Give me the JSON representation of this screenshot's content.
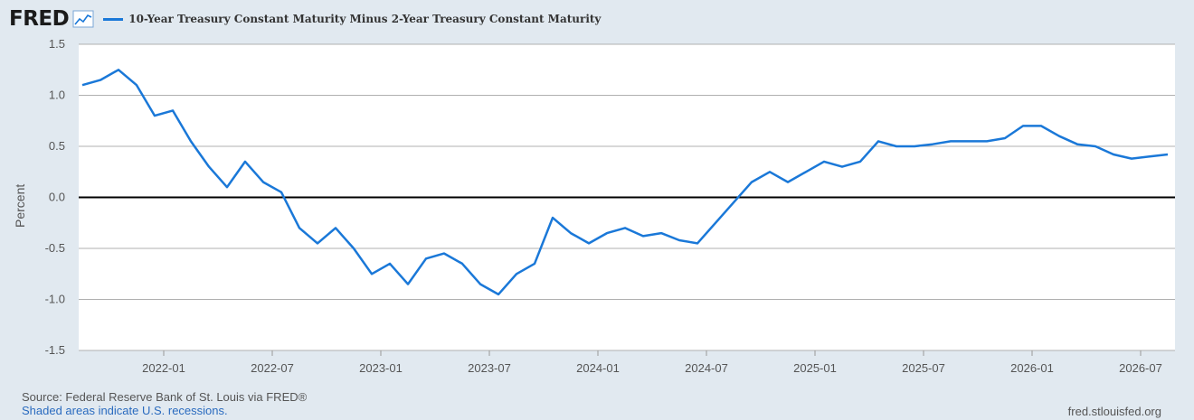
{
  "header": {
    "logo": "FRED",
    "logo_icon": "chart-line-icon",
    "series_label": "10-Year Treasury Constant Maturity Minus 2-Year Treasury Constant Maturity"
  },
  "colors": {
    "background": "#e1e9f0",
    "plot_background": "#ffffff",
    "series": "#1a78d8",
    "zero_line": "#000000",
    "grid": "#b0b0b0"
  },
  "footer": {
    "source": "Source: Federal Reserve Bank of St. Louis via FRED®",
    "shaded": "Shaded areas indicate U.S. recessions.",
    "url": "fred.stlouisfed.org"
  },
  "chart_data": {
    "type": "line",
    "title": "",
    "xlabel": "",
    "ylabel": "Percent",
    "ylim": [
      -1.5,
      1.5
    ],
    "yticks": [
      "1.5",
      "1.0",
      "0.5",
      "0.0",
      "-0.5",
      "-1.0",
      "-1.5"
    ],
    "xticks": [
      "2022-01",
      "2022-07",
      "2023-01",
      "2023-07",
      "2024-01",
      "2024-07",
      "2025-01",
      "2025-07",
      "2026-01",
      "2026-07"
    ],
    "grid": true,
    "legend": "top-left",
    "series": [
      {
        "name": "10-Year Treasury Constant Maturity Minus 2-Year Treasury Constant Maturity",
        "x": [
          "2021-08",
          "2021-09",
          "2021-10",
          "2021-11",
          "2021-12",
          "2022-01",
          "2022-02",
          "2022-03",
          "2022-04",
          "2022-05",
          "2022-06",
          "2022-07",
          "2022-08",
          "2022-09",
          "2022-10",
          "2022-11",
          "2022-12",
          "2023-01",
          "2023-02",
          "2023-03",
          "2023-04",
          "2023-05",
          "2023-06",
          "2023-07",
          "2023-08",
          "2023-09",
          "2023-10",
          "2023-11",
          "2023-12",
          "2024-01",
          "2024-02",
          "2024-03",
          "2024-04",
          "2024-05",
          "2024-06",
          "2024-07",
          "2024-08",
          "2024-09",
          "2024-10",
          "2024-11",
          "2024-12",
          "2025-01",
          "2025-02",
          "2025-03",
          "2025-04",
          "2025-05",
          "2025-06",
          "2025-07",
          "2025-08",
          "2025-09",
          "2025-10",
          "2025-11",
          "2025-12",
          "2026-01",
          "2026-02",
          "2026-03",
          "2026-04",
          "2026-05",
          "2026-06",
          "2026-07",
          "2026-08"
        ],
        "values": [
          1.1,
          1.15,
          1.25,
          1.1,
          0.8,
          0.85,
          0.55,
          0.3,
          0.1,
          0.35,
          0.15,
          0.05,
          -0.3,
          -0.45,
          -0.3,
          -0.5,
          -0.75,
          -0.65,
          -0.85,
          -0.6,
          -0.55,
          -0.65,
          -0.85,
          -0.95,
          -0.75,
          -0.65,
          -0.2,
          -0.35,
          -0.45,
          -0.35,
          -0.3,
          -0.38,
          -0.35,
          -0.42,
          -0.45,
          -0.25,
          -0.05,
          0.15,
          0.25,
          0.15,
          0.25,
          0.35,
          0.3,
          0.35,
          0.55,
          0.5,
          0.5,
          0.52,
          0.55,
          0.55,
          0.55,
          0.58,
          0.7,
          0.7,
          0.6,
          0.52,
          0.5,
          0.42,
          0.38,
          0.4,
          0.42
        ]
      }
    ]
  }
}
